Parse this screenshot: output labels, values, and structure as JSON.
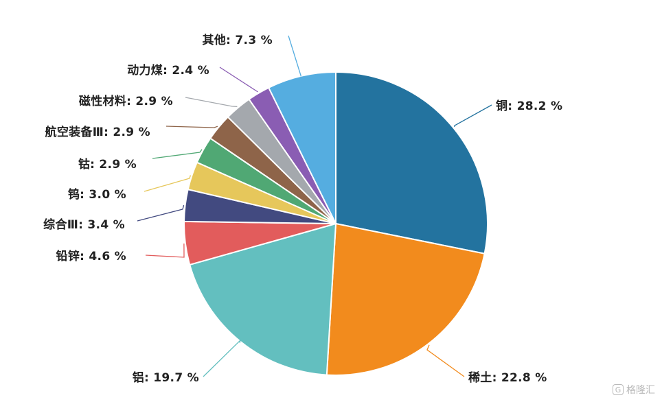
{
  "chart_data": {
    "type": "pie",
    "title": "",
    "start_angle_deg": 0,
    "direction": "clockwise",
    "slices": [
      {
        "label": "铜",
        "value": 28.2,
        "display": "铜: 28.2 %",
        "color": "#23739f"
      },
      {
        "label": "稀土",
        "value": 22.8,
        "display": "稀土: 22.8 %",
        "color": "#f28b1d"
      },
      {
        "label": "铝",
        "value": 19.7,
        "display": "铝: 19.7 %",
        "color": "#63bfbf"
      },
      {
        "label": "铅锌",
        "value": 4.6,
        "display": "铅锌: 4.6 %",
        "color": "#e25c5c"
      },
      {
        "label": "综合Ⅲ",
        "value": 3.4,
        "display": "综合Ⅲ: 3.4 %",
        "color": "#424a80"
      },
      {
        "label": "钨",
        "value": 3.0,
        "display": "钨: 3.0 %",
        "color": "#e6c75b"
      },
      {
        "label": "钴",
        "value": 2.9,
        "display": "钴: 2.9 %",
        "color": "#50a874"
      },
      {
        "label": "航空装备Ⅲ",
        "value": 2.9,
        "display": "航空装备Ⅲ: 2.9 %",
        "color": "#8e6449"
      },
      {
        "label": "磁性材料",
        "value": 2.9,
        "display": "磁性材料: 2.9 %",
        "color": "#a4a8ad"
      },
      {
        "label": "动力煤",
        "value": 2.4,
        "display": "动力煤: 2.4 %",
        "color": "#8a5db3"
      },
      {
        "label": "其他",
        "value": 7.3,
        "display": "其他: 7.3 %",
        "color": "#55ade0"
      }
    ]
  },
  "watermark": {
    "text": "格隆汇",
    "logo_glyph": "G"
  }
}
